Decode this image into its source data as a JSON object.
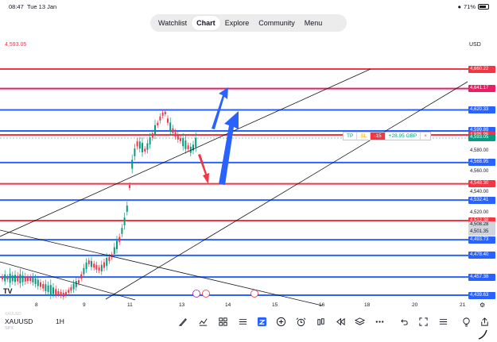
{
  "status": {
    "time": "08:47",
    "date": "Tue 13 Jan",
    "battery": "71%"
  },
  "nav": {
    "tabs": [
      {
        "label": "Watchlist"
      },
      {
        "label": "Chart",
        "active": true
      },
      {
        "label": "Explore"
      },
      {
        "label": "Community"
      },
      {
        "label": "Menu"
      }
    ]
  },
  "chart": {
    "top_left_price": "4,593.05",
    "currency": "USD",
    "symbol": "XAUUSD",
    "exchange": "SPX",
    "interval": "1H",
    "faded_text": "XAUUSD",
    "x_ticks": [
      {
        "label": "8",
        "day": 8
      },
      {
        "label": "9",
        "day": 9
      },
      {
        "label": "11",
        "day": 11
      },
      {
        "label": "13",
        "day": 13
      },
      {
        "label": "14",
        "day": 14
      },
      {
        "label": "15",
        "day": 15
      },
      {
        "label": "16",
        "day": 16
      },
      {
        "label": "18",
        "day": 18
      },
      {
        "label": "20",
        "day": 20
      },
      {
        "label": "21",
        "day": 21
      }
    ],
    "price_labels": [
      {
        "text": "4,660.22",
        "price": 4660.22,
        "color": "#f23645"
      },
      {
        "text": "4,641.17",
        "price": 4641.17,
        "color": "#e91e63"
      },
      {
        "text": "4,620.33",
        "price": 4620.33,
        "color": "#2962ff"
      },
      {
        "text": "4,599.89",
        "price": 4599.89,
        "color": "#2962ff"
      },
      {
        "text": "4,595.95",
        "price": 4595.95,
        "color": "#f23645"
      },
      {
        "text": "4,593.05",
        "price": 4593.05,
        "color": "#089981"
      },
      {
        "text": "4,580.00",
        "price": 4580.0,
        "color": "none"
      },
      {
        "text": "4,568.95",
        "price": 4568.95,
        "color": "#2962ff"
      },
      {
        "text": "4,560.00",
        "price": 4560.0,
        "color": "none"
      },
      {
        "text": "4,548.30",
        "price": 4548.3,
        "color": "#f23645"
      },
      {
        "text": "4,540.00",
        "price": 4540.0,
        "color": "none"
      },
      {
        "text": "4,532.41",
        "price": 4532.41,
        "color": "#2962ff"
      },
      {
        "text": "4,520.00",
        "price": 4520.0,
        "color": "none"
      },
      {
        "text": "4,512.38",
        "price": 4512.38,
        "color": "#f23645"
      },
      {
        "text": "4,508.28",
        "price": 4508.28,
        "color": "#d1d4dc"
      },
      {
        "text": "4,501.35",
        "price": 4501.35,
        "color": "#d1d4dc"
      },
      {
        "text": "4,493.73",
        "price": 4493.73,
        "color": "#2962ff"
      },
      {
        "text": "4,478.40",
        "price": 4478.4,
        "color": "#2962ff"
      },
      {
        "text": "4,457.38",
        "price": 4457.38,
        "color": "#2962ff"
      },
      {
        "text": "4,439.63",
        "price": 4439.63,
        "color": "#2962ff"
      }
    ],
    "order": {
      "tp": "TP",
      "sl": "SL",
      "qty": "-15",
      "pnl": "+28.95 GBP",
      "close": "×"
    },
    "colors": {
      "red": "#f23645",
      "blue": "#2962ff",
      "green": "#089981",
      "pink": "#e91e63"
    }
  },
  "toolbar": {
    "tools": [
      {
        "name": "brush-icon"
      },
      {
        "name": "indicators-icon"
      },
      {
        "name": "layout-grid-icon"
      },
      {
        "name": "template-icon"
      },
      {
        "name": "object-tree-icon"
      },
      {
        "name": "add-icon"
      },
      {
        "name": "alert-icon"
      },
      {
        "name": "compare-icon"
      },
      {
        "name": "replay-icon"
      },
      {
        "name": "layers-icon"
      },
      {
        "name": "more-icon"
      },
      {
        "name": "undo-icon"
      },
      {
        "name": "fullscreen-icon"
      },
      {
        "name": "menu-icon"
      },
      {
        "name": "idea-icon"
      },
      {
        "name": "share-icon"
      }
    ]
  }
}
